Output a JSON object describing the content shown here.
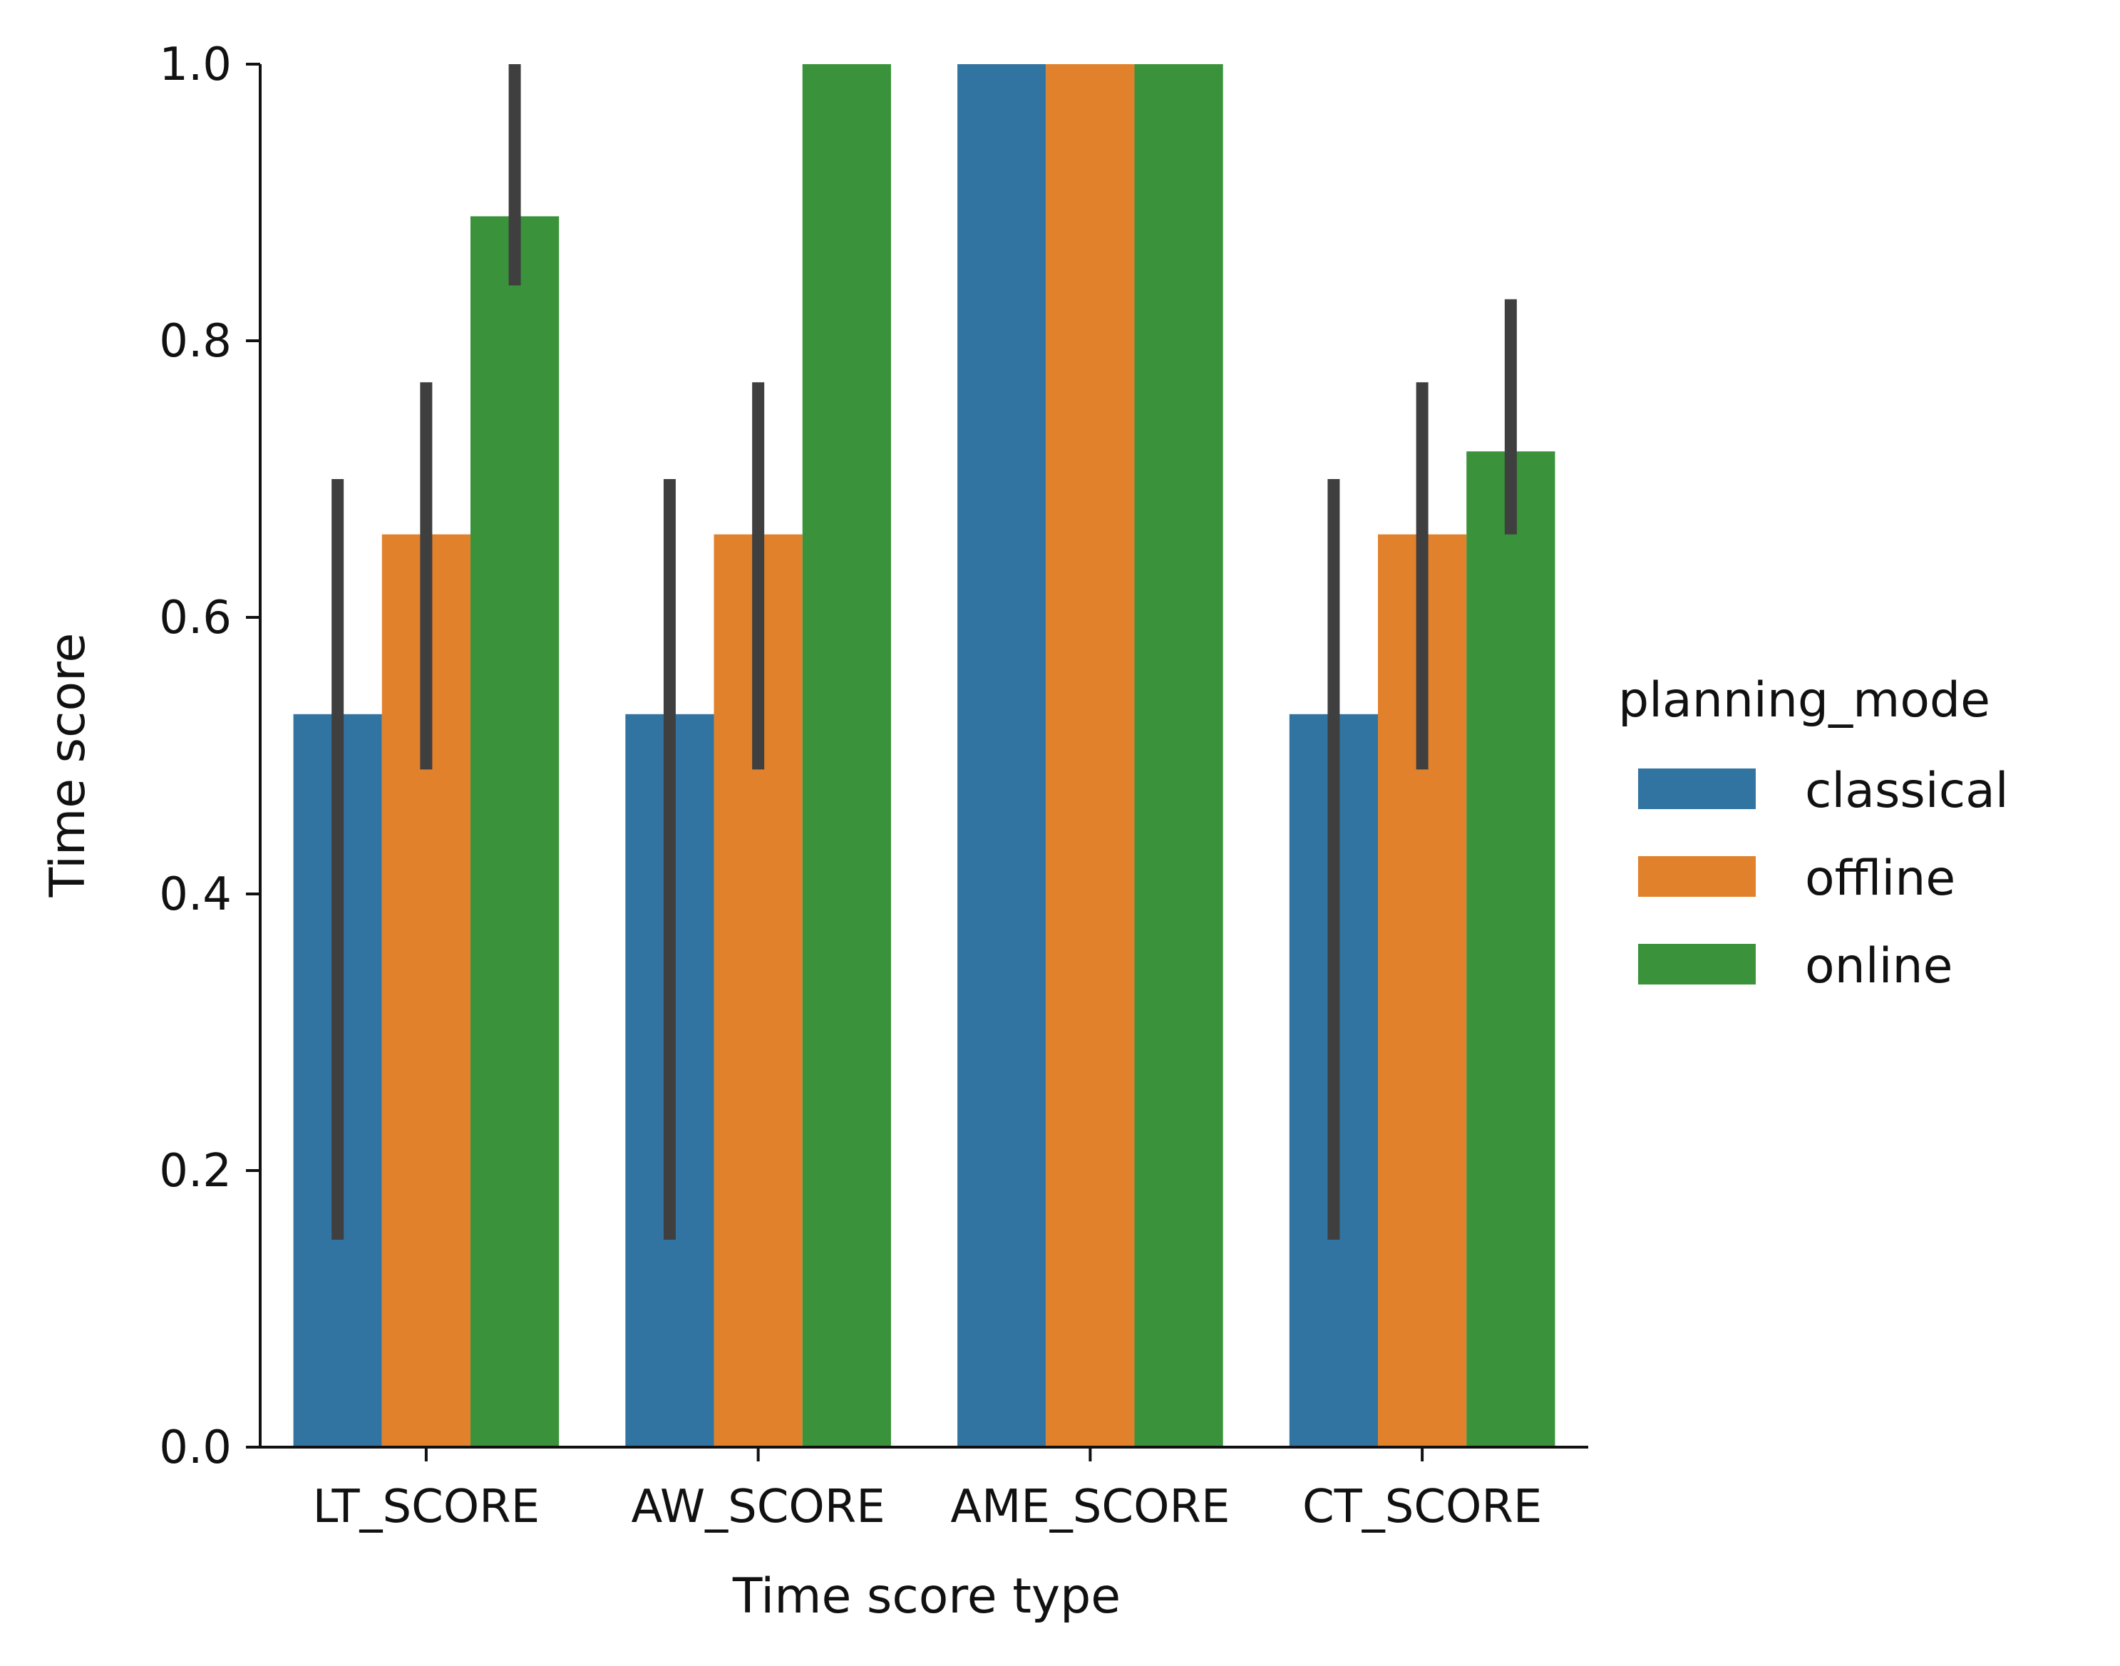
{
  "chart_data": {
    "type": "bar",
    "title": "",
    "xlabel": "Time score type",
    "ylabel": "Time score",
    "ylim": [
      0,
      1.0
    ],
    "yticks": [
      "0.0",
      "0.2",
      "0.4",
      "0.6",
      "0.8",
      "1.0"
    ],
    "categories": [
      "LT_SCORE",
      "AW_SCORE",
      "AME_SCORE",
      "CT_SCORE"
    ],
    "legend": {
      "title": "planning_mode",
      "placement": "right"
    },
    "grid": false,
    "series": [
      {
        "name": "classical",
        "color": "#3274a1",
        "values": [
          0.53,
          0.53,
          1.0,
          0.53
        ],
        "ci": [
          [
            0.15,
            0.7
          ],
          [
            0.15,
            0.7
          ],
          null,
          [
            0.15,
            0.7
          ]
        ]
      },
      {
        "name": "offline",
        "color": "#e1812c",
        "values": [
          0.66,
          0.66,
          1.0,
          0.66
        ],
        "ci": [
          [
            0.49,
            0.77
          ],
          [
            0.49,
            0.77
          ],
          null,
          [
            0.49,
            0.77
          ]
        ]
      },
      {
        "name": "online",
        "color": "#3a923a",
        "values": [
          0.89,
          1.0,
          1.0,
          0.72
        ],
        "ci": [
          [
            0.84,
            1.0
          ],
          null,
          null,
          [
            0.66,
            0.83
          ]
        ]
      }
    ],
    "errorbar_color": "#3f3f3f"
  }
}
